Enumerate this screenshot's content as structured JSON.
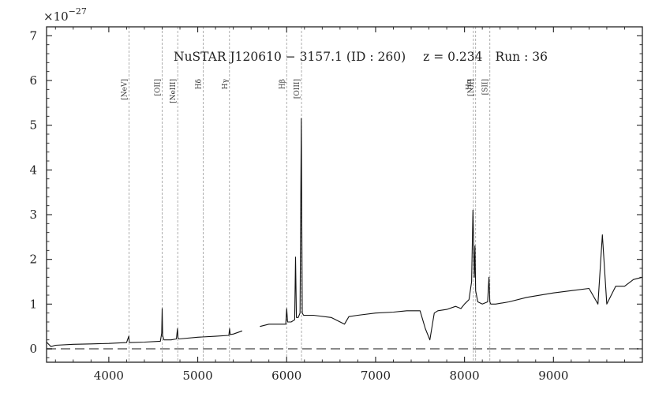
{
  "chart_data": {
    "type": "line",
    "title": "NuSTAR J120610 − 3157.1 (ID : 260)",
    "redshift_label": "z = 0.234",
    "run_label": "Run : 36",
    "y_multiplier": "×10",
    "y_exponent": "−27",
    "xlabel": "",
    "ylabel": "",
    "xlim": [
      3300,
      10000
    ],
    "ylim": [
      -0.3,
      7.2
    ],
    "x_ticks": [
      4000,
      5000,
      6000,
      7000,
      8000,
      9000
    ],
    "x_tick_labels": [
      "4000",
      "5000",
      "6000",
      "7000",
      "8000",
      "9000"
    ],
    "y_ticks": [
      0,
      1,
      2,
      3,
      4,
      5,
      6,
      7
    ],
    "y_tick_labels": [
      "0",
      "1",
      "2",
      "3",
      "4",
      "5",
      "6",
      "7"
    ],
    "zero_line": 0,
    "emission_lines": [
      {
        "label": "[NeV]",
        "x": 4228
      },
      {
        "label": "[OII]",
        "x": 4600
      },
      {
        "label": "[NeIII]",
        "x": 4775
      },
      {
        "label": "Hδ",
        "x": 5062
      },
      {
        "label": "Hγ",
        "x": 5357
      },
      {
        "label": "Hβ",
        "x": 6000
      },
      {
        "label": "[OIII]",
        "x": 6167
      },
      {
        "label": "Hα",
        "x": 8100
      },
      {
        "label": "[NII]",
        "x": 8125
      },
      {
        "label": "[SII]",
        "x": 8285
      }
    ],
    "series": [
      {
        "segments": [
          {
            "x": [
              3300,
              3350,
              3400,
              3600,
              3800,
              4000,
              4200,
              4225,
              4230,
              4235,
              4400,
              4580,
              4595,
              4600,
              4605,
              4620,
              4700,
              4760,
              4772,
              4778,
              4790,
              5000,
              5200,
              5350,
              5358,
              5365,
              5400,
              5500
            ],
            "y": [
              0.15,
              0.05,
              0.08,
              0.1,
              0.11,
              0.12,
              0.14,
              0.28,
              0.15,
              0.14,
              0.15,
              0.17,
              0.35,
              0.9,
              0.3,
              0.2,
              0.2,
              0.22,
              0.45,
              0.24,
              0.22,
              0.26,
              0.28,
              0.3,
              0.45,
              0.32,
              0.33,
              0.4
            ]
          },
          {
            "x": [
              5700,
              5800,
              5990,
              6000,
              6010,
              6050,
              6090,
              6100,
              6110,
              6130,
              6150,
              6165,
              6175,
              6190,
              6300,
              6500,
              6650,
              6700,
              6800,
              7000,
              7200,
              7350,
              7500,
              7560,
              7610,
              7660,
              7700,
              7800,
              7900,
              7960,
              8000,
              8050,
              8080,
              8095,
              8110,
              8118,
              8125,
              8135,
              8150,
              8200,
              8260,
              8275,
              8285,
              8295,
              8350,
              8500,
              8700,
              9000,
              9200,
              9400,
              9500,
              9550,
              9600,
              9700,
              9800,
              9900,
              10000
            ],
            "y": [
              0.5,
              0.55,
              0.55,
              0.9,
              0.6,
              0.6,
              0.65,
              2.05,
              0.7,
              0.7,
              0.8,
              5.15,
              0.8,
              0.75,
              0.75,
              0.7,
              0.55,
              0.72,
              0.75,
              0.8,
              0.82,
              0.85,
              0.85,
              0.45,
              0.2,
              0.8,
              0.85,
              0.88,
              0.95,
              0.9,
              1.0,
              1.1,
              1.5,
              3.1,
              1.6,
              2.3,
              1.3,
              1.2,
              1.05,
              1.0,
              1.05,
              1.6,
              1.05,
              1.0,
              1.0,
              1.05,
              1.15,
              1.25,
              1.3,
              1.35,
              1.0,
              2.55,
              1.0,
              1.4,
              1.4,
              1.55,
              1.6
            ]
          }
        ]
      }
    ]
  }
}
